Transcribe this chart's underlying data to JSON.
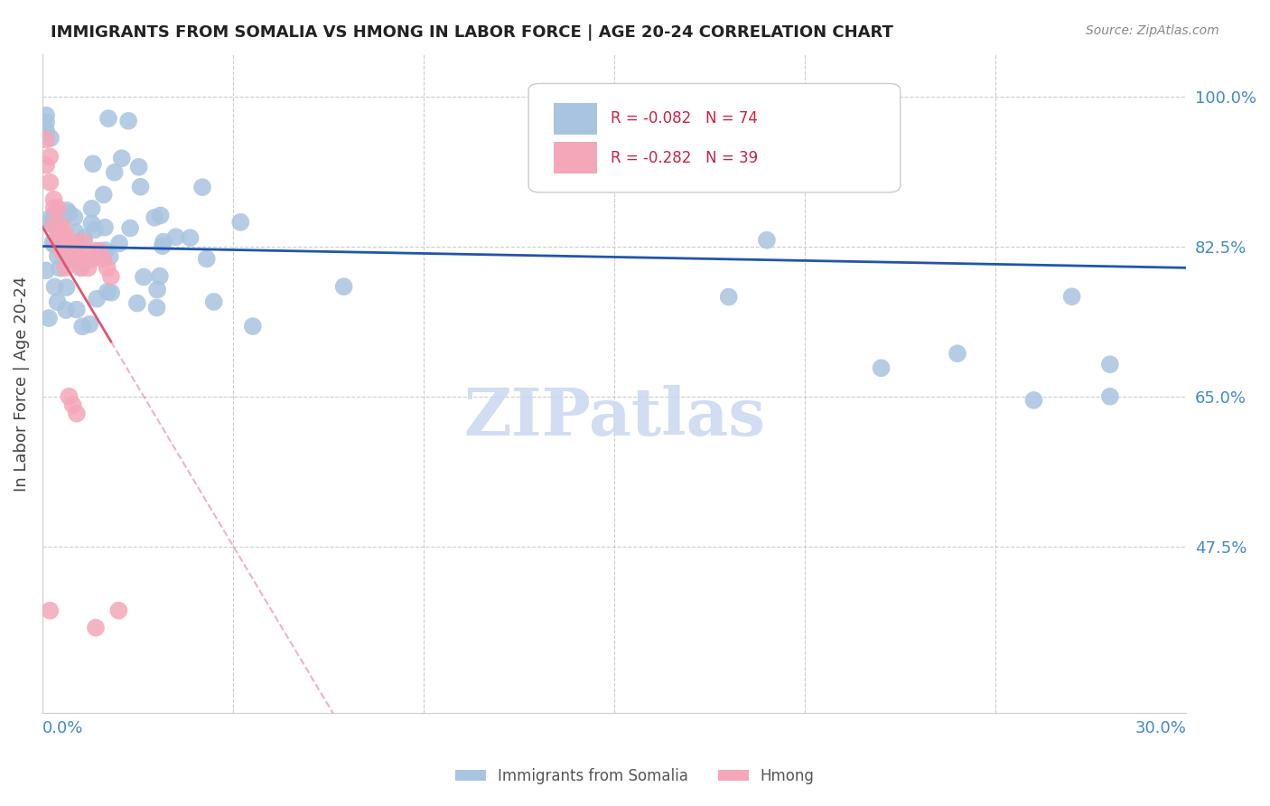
{
  "title": "IMMIGRANTS FROM SOMALIA VS HMONG IN LABOR FORCE | AGE 20-24 CORRELATION CHART",
  "source": "Source: ZipAtlas.com",
  "ylabel": "In Labor Force | Age 20-24",
  "ylabel_ticks": [
    "100.0%",
    "82.5%",
    "65.0%",
    "47.5%"
  ],
  "ylabel_values": [
    1.0,
    0.825,
    0.65,
    0.475
  ],
  "xlim": [
    0.0,
    0.3
  ],
  "ylim": [
    0.28,
    1.05
  ],
  "somalia_R": -0.082,
  "somalia_N": 74,
  "hmong_R": -0.282,
  "hmong_N": 39,
  "somalia_color": "#a8c4e0",
  "hmong_color": "#f4a7b9",
  "somalia_line_color": "#2255aa",
  "hmong_line_color": "#e05575",
  "watermark": "ZIPatlas",
  "watermark_color": "#c8d8f0",
  "grid_color": "#cccccc",
  "title_color": "#222222",
  "right_tick_color": "#4488cc",
  "legend_somalia_text": "R = -0.082   N = 74",
  "legend_hmong_text": "R = -0.282   N = 39",
  "legend_text_color": "#cc2244",
  "bottom_legend_somalia": "Immigrants from Somalia",
  "bottom_legend_hmong": "Hmong",
  "bottom_legend_color": "#555555"
}
